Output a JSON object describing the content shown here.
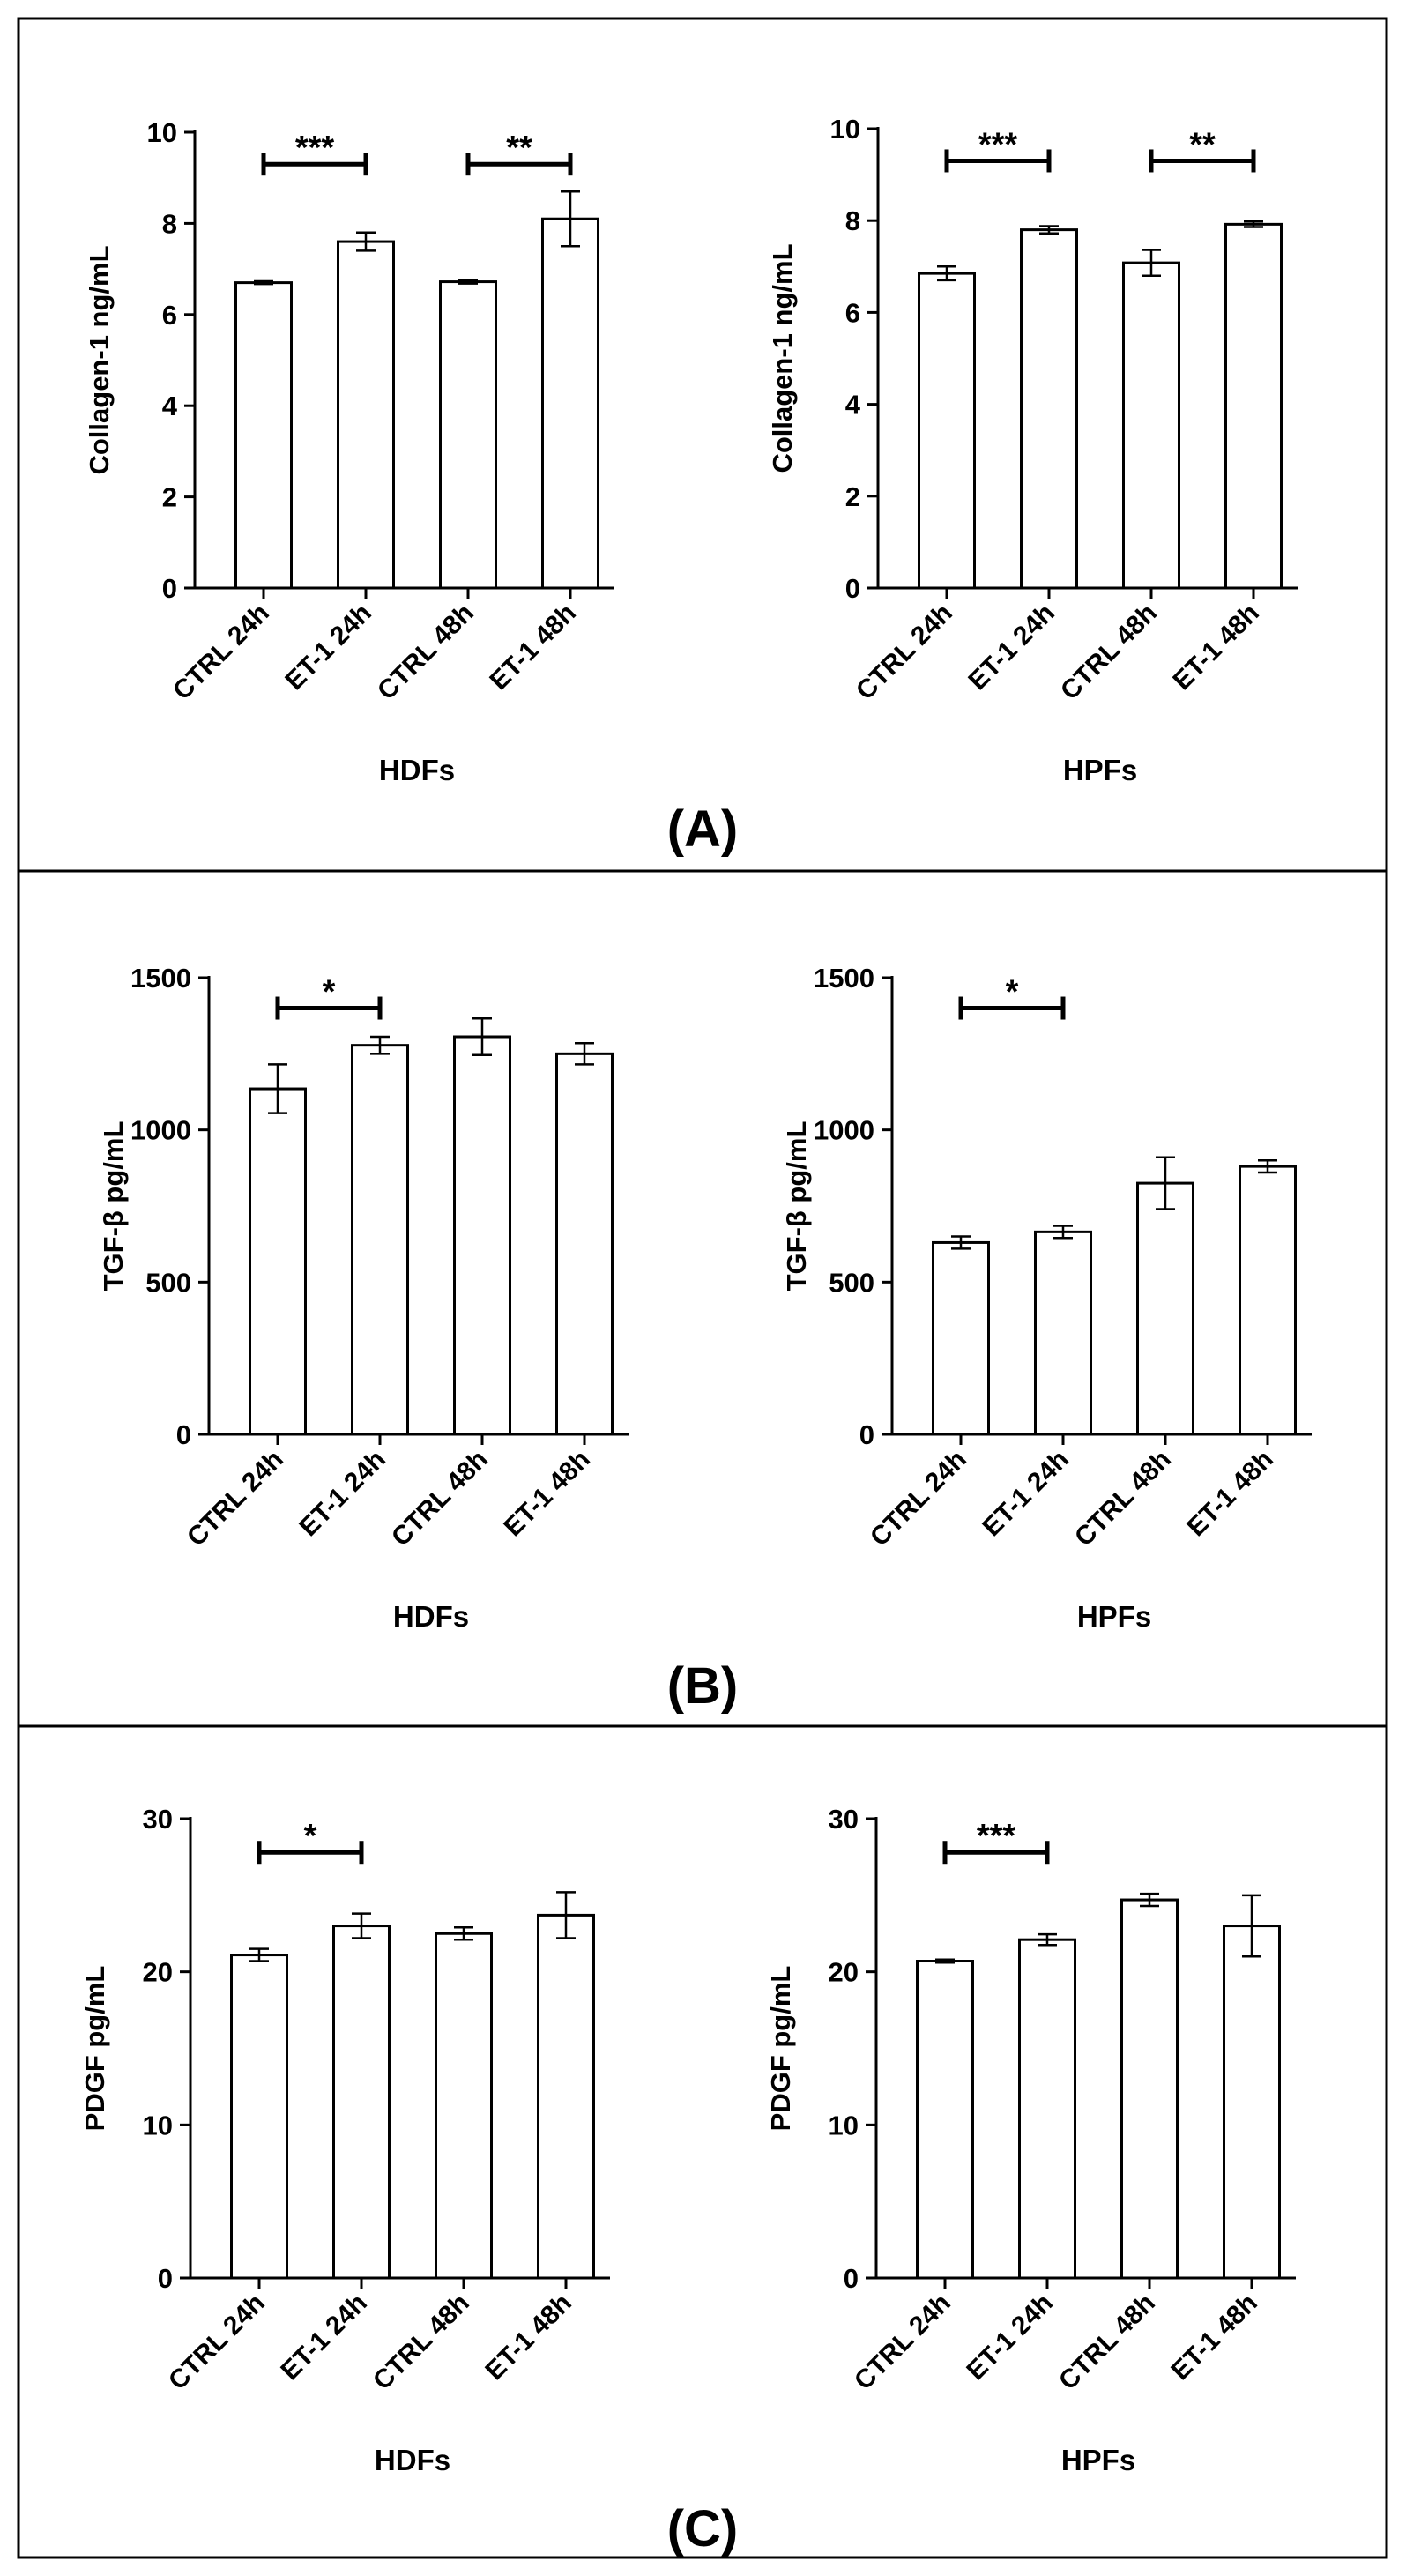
{
  "panels": [
    {
      "label": "(A)",
      "charts": [
        0,
        1
      ]
    },
    {
      "label": "(B)",
      "charts": [
        2,
        3
      ]
    },
    {
      "label": "(C)",
      "charts": [
        4,
        5
      ]
    }
  ],
  "chart_data": [
    {
      "type": "bar",
      "title": "",
      "xlabel": "HDFs",
      "ylabel": "Collagen-1 ng/mL",
      "categories": [
        "CTRL 24h",
        "ET-1 24h",
        "CTRL 48h",
        "ET-1 48h"
      ],
      "values": [
        6.7,
        7.6,
        6.72,
        8.1
      ],
      "errors": [
        0.03,
        0.2,
        0.04,
        0.6
      ],
      "ylim": [
        0,
        10
      ],
      "yticks": [
        0,
        2,
        4,
        6,
        8,
        10
      ],
      "ytick_labels": [
        "0",
        "2",
        "4",
        "6",
        "8",
        "10"
      ],
      "significance": [
        {
          "from": 0,
          "to": 1,
          "y": 9.3,
          "label": "***"
        },
        {
          "from": 2,
          "to": 3,
          "y": 9.3,
          "label": "**"
        }
      ]
    },
    {
      "type": "bar",
      "title": "",
      "xlabel": "HPFs",
      "ylabel": "Collagen-1 ng/mL",
      "categories": [
        "CTRL 24h",
        "ET-1 24h",
        "CTRL 48h",
        "ET-1 48h"
      ],
      "values": [
        6.85,
        7.8,
        7.08,
        7.92
      ],
      "errors": [
        0.15,
        0.08,
        0.28,
        0.06
      ],
      "ylim": [
        0,
        10
      ],
      "yticks": [
        0,
        2,
        4,
        6,
        8,
        10
      ],
      "ytick_labels": [
        "0",
        "2",
        "4",
        "6",
        "8",
        "10"
      ],
      "significance": [
        {
          "from": 0,
          "to": 1,
          "y": 9.3,
          "label": "***"
        },
        {
          "from": 2,
          "to": 3,
          "y": 9.3,
          "label": "**"
        }
      ]
    },
    {
      "type": "bar",
      "title": "",
      "xlabel": "HDFs",
      "ylabel": "TGF-β pg/mL",
      "categories": [
        "CTRL 24h",
        "ET-1 24h",
        "CTRL 48h",
        "ET-1 48h"
      ],
      "values": [
        1135,
        1278,
        1306,
        1250
      ],
      "errors": [
        80,
        28,
        60,
        35
      ],
      "ylim": [
        0,
        1500
      ],
      "yticks": [
        0,
        500,
        1000,
        1500
      ],
      "ytick_labels": [
        "0",
        "500",
        "1000",
        "1500"
      ],
      "significance": [
        {
          "from": 0,
          "to": 1,
          "y": 1400,
          "label": "*"
        }
      ]
    },
    {
      "type": "bar",
      "title": "",
      "xlabel": "HPFs",
      "ylabel": "TGF-β pg/mL",
      "categories": [
        "CTRL 24h",
        "ET-1 24h",
        "CTRL 48h",
        "ET-1 48h"
      ],
      "values": [
        630,
        665,
        825,
        880
      ],
      "errors": [
        20,
        20,
        85,
        20
      ],
      "ylim": [
        0,
        1500
      ],
      "yticks": [
        0,
        500,
        1000,
        1500
      ],
      "ytick_labels": [
        "0",
        "500",
        "1000",
        "1500"
      ],
      "significance": [
        {
          "from": 0,
          "to": 1,
          "y": 1400,
          "label": "*"
        }
      ]
    },
    {
      "type": "bar",
      "title": "",
      "xlabel": "HDFs",
      "ylabel": "PDGF pg/mL",
      "categories": [
        "CTRL 24h",
        "ET-1 24h",
        "CTRL 48h",
        "ET-1 48h"
      ],
      "values": [
        21.1,
        23.0,
        22.5,
        23.7
      ],
      "errors": [
        0.4,
        0.8,
        0.4,
        1.5
      ],
      "ylim": [
        0,
        30
      ],
      "yticks": [
        0,
        10,
        20,
        30
      ],
      "ytick_labels": [
        "0",
        "10",
        "20",
        "30"
      ],
      "significance": [
        {
          "from": 0,
          "to": 1,
          "y": 27.8,
          "label": "*"
        }
      ]
    },
    {
      "type": "bar",
      "title": "",
      "xlabel": "HPFs",
      "ylabel": "PDGF pg/mL",
      "categories": [
        "CTRL 24h",
        "ET-1 24h",
        "CTRL 48h",
        "ET-1 48h"
      ],
      "values": [
        20.7,
        22.1,
        24.7,
        23.0
      ],
      "errors": [
        0.1,
        0.35,
        0.4,
        2.0
      ],
      "ylim": [
        0,
        30
      ],
      "yticks": [
        0,
        10,
        20,
        30
      ],
      "ytick_labels": [
        "0",
        "10",
        "20",
        "30"
      ],
      "significance": [
        {
          "from": 0,
          "to": 1,
          "y": 27.8,
          "label": "***"
        }
      ]
    }
  ]
}
